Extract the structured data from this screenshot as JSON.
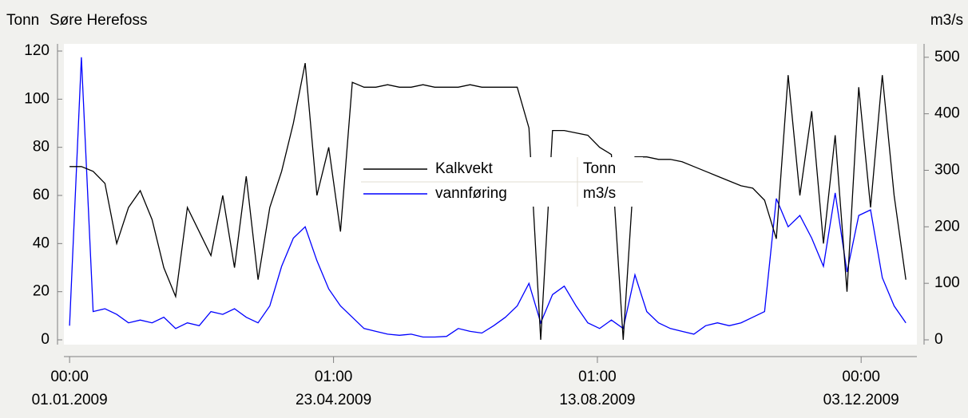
{
  "chart_data": {
    "type": "line",
    "title": "Søre Herefoss",
    "y_label": "Tonn",
    "y2_label": "m3/s",
    "x": [
      "2009-01-01",
      "2009-01-06",
      "2009-01-11",
      "2009-01-16",
      "2009-01-21",
      "2009-01-26",
      "2009-01-31",
      "2009-02-05",
      "2009-02-10",
      "2009-02-15",
      "2009-02-20",
      "2009-02-25",
      "2009-03-02",
      "2009-03-07",
      "2009-03-12",
      "2009-03-17",
      "2009-03-22",
      "2009-03-27",
      "2009-04-01",
      "2009-04-06",
      "2009-04-11",
      "2009-04-16",
      "2009-04-21",
      "2009-04-26",
      "2009-05-01",
      "2009-05-06",
      "2009-05-11",
      "2009-05-16",
      "2009-05-21",
      "2009-05-26",
      "2009-05-31",
      "2009-06-05",
      "2009-06-10",
      "2009-06-15",
      "2009-06-20",
      "2009-06-25",
      "2009-06-30",
      "2009-07-05",
      "2009-07-10",
      "2009-07-15",
      "2009-07-20",
      "2009-07-25",
      "2009-07-30",
      "2009-08-04",
      "2009-08-09",
      "2009-08-14",
      "2009-08-19",
      "2009-08-24",
      "2009-08-29",
      "2009-09-03",
      "2009-09-08",
      "2009-09-13",
      "2009-09-18",
      "2009-09-23",
      "2009-09-28",
      "2009-10-03",
      "2009-10-08",
      "2009-10-13",
      "2009-10-18",
      "2009-10-23",
      "2009-10-28",
      "2009-11-02",
      "2009-11-07",
      "2009-11-12",
      "2009-11-17",
      "2009-11-22",
      "2009-11-27",
      "2009-12-02",
      "2009-12-07",
      "2009-12-12",
      "2009-12-17",
      "2009-12-22"
    ],
    "series": [
      {
        "name": "Kalkvekt",
        "unit": "Tonn",
        "color": "#000000",
        "axis": "y",
        "values": [
          72,
          72,
          70,
          65,
          40,
          55,
          62,
          50,
          30,
          18,
          55,
          45,
          35,
          60,
          30,
          68,
          25,
          55,
          70,
          90,
          115,
          60,
          80,
          45,
          107,
          105,
          105,
          106,
          105,
          105,
          106,
          105,
          105,
          105,
          106,
          105,
          105,
          105,
          105,
          88,
          0,
          87,
          87,
          86,
          85,
          80,
          77,
          0,
          76,
          76,
          75,
          75,
          74,
          72,
          70,
          68,
          66,
          64,
          63,
          58,
          42,
          110,
          60,
          95,
          40,
          85,
          20,
          105,
          55,
          110,
          60,
          25
        ]
      },
      {
        "name": "vannføring",
        "unit": "m3/s",
        "color": "#0000ff",
        "axis": "y2",
        "values": [
          25,
          500,
          50,
          55,
          45,
          30,
          35,
          30,
          40,
          20,
          30,
          25,
          50,
          45,
          55,
          40,
          30,
          60,
          130,
          180,
          200,
          140,
          90,
          60,
          40,
          20,
          15,
          10,
          8,
          10,
          5,
          5,
          6,
          20,
          15,
          12,
          25,
          40,
          60,
          100,
          30,
          80,
          95,
          60,
          30,
          20,
          35,
          20,
          115,
          50,
          30,
          20,
          15,
          10,
          25,
          30,
          25,
          30,
          40,
          50,
          250,
          200,
          220,
          180,
          130,
          260,
          120,
          220,
          230,
          110,
          60,
          30
        ]
      }
    ],
    "xlim": [
      "2008-12-29T14:00",
      "2009-12-26T16:00"
    ],
    "xticks": [
      {
        "value": "2009-01-01T00:00",
        "label": [
          "00:00",
          "01.01.2009"
        ]
      },
      {
        "value": "2009-04-23T01:00",
        "label": [
          "01:00",
          "23.04.2009"
        ]
      },
      {
        "value": "2009-08-13T01:00",
        "label": [
          "01:00",
          "13.08.2009"
        ]
      },
      {
        "value": "2009-12-03T00:00",
        "label": [
          "00:00",
          "03.12.2009"
        ]
      }
    ],
    "ylim": [
      0,
      120
    ],
    "yticks": [
      0,
      20,
      40,
      60,
      80,
      100,
      120
    ],
    "y2lim": [
      0,
      511
    ],
    "y2ticks": [
      0,
      100,
      200,
      300,
      400,
      500
    ],
    "legend": "center"
  }
}
